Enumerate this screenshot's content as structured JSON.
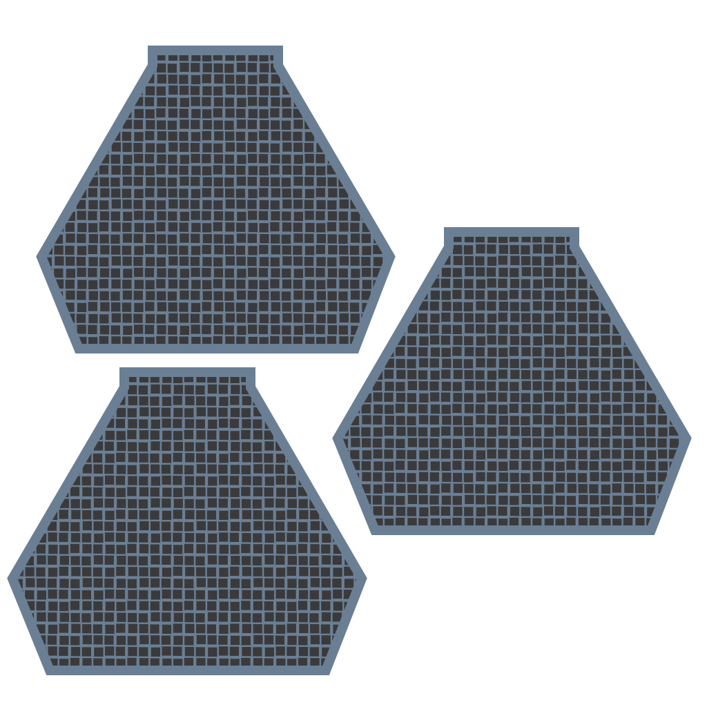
{
  "colors": {
    "background": "#ffffff",
    "border": "#6b7f94",
    "fill": "#3a3a3c",
    "grid": "#6b7f94"
  },
  "shapes": [
    {
      "name": "grid-hexagon-shape-top-left"
    },
    {
      "name": "grid-hexagon-shape-right"
    },
    {
      "name": "grid-hexagon-shape-bottom-left"
    }
  ]
}
